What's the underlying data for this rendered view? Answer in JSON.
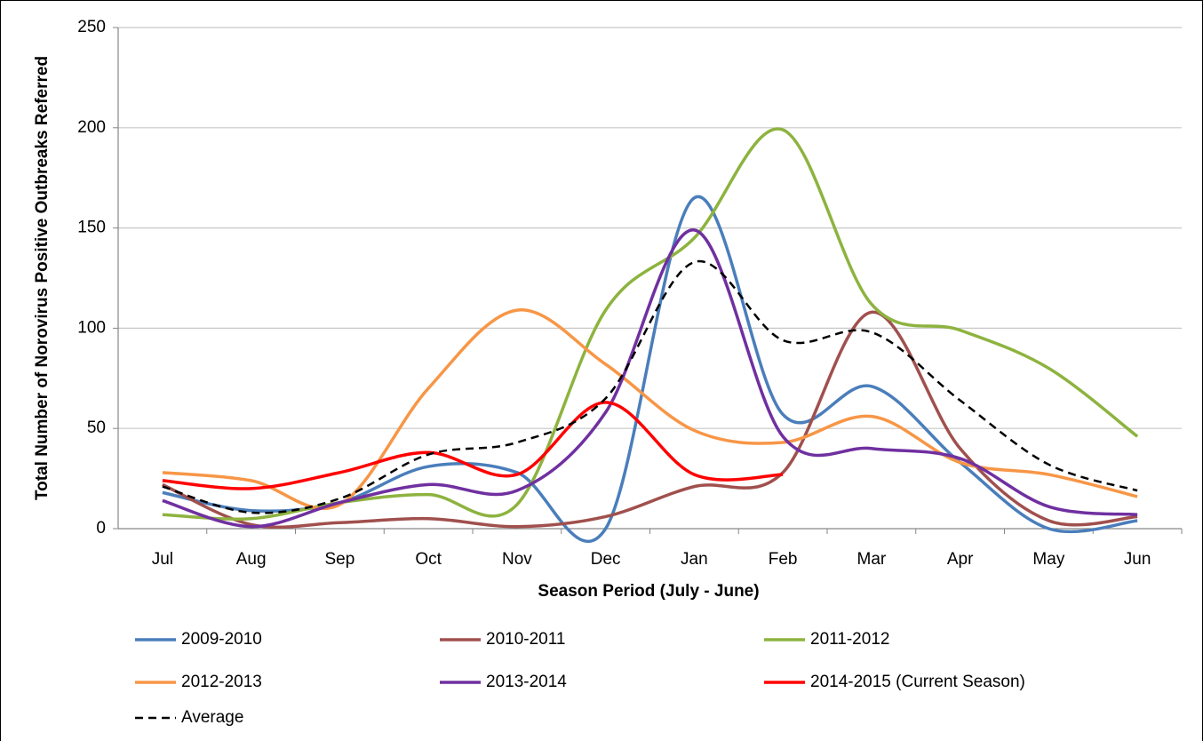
{
  "chart_data": {
    "type": "line",
    "y_label": "Total Number of Norovirus Positive Outbreaks Referred",
    "x_label": "Season Period (July - June)",
    "categories": [
      "Jul",
      "Aug",
      "Sep",
      "Oct",
      "Nov",
      "Dec",
      "Jan",
      "Feb",
      "Mar",
      "Apr",
      "May",
      "Jun"
    ],
    "ylim": [
      0,
      250
    ],
    "yticks": [
      0,
      50,
      100,
      150,
      200,
      250
    ],
    "grid": true,
    "smooth": true,
    "series": [
      {
        "name": "2009-2010",
        "color": "#4a7ebb",
        "values": [
          18,
          9,
          13,
          31,
          28,
          0,
          165,
          57,
          71,
          33,
          0,
          4
        ]
      },
      {
        "name": "2010-2011",
        "color": "#a0504d",
        "values": [
          22,
          2,
          3,
          5,
          1,
          6,
          21,
          28,
          108,
          40,
          4,
          6
        ]
      },
      {
        "name": "2011-2012",
        "color": "#8db33f",
        "values": [
          7,
          5,
          13,
          17,
          12,
          109,
          145,
          199,
          112,
          99,
          80,
          46
        ]
      },
      {
        "name": "2012-2013",
        "color": "#f79646",
        "values": [
          28,
          24,
          12,
          70,
          109,
          82,
          49,
          43,
          56,
          33,
          27,
          16
        ]
      },
      {
        "name": "2013-2014",
        "color": "#7030a0",
        "values": [
          14,
          1,
          13,
          22,
          19,
          58,
          149,
          46,
          40,
          35,
          11,
          7
        ]
      },
      {
        "name": "2014-2015 (Current Season)",
        "color": "#ff0000",
        "values": [
          24,
          20,
          28,
          38,
          27,
          63,
          27,
          27,
          null,
          null,
          null,
          null
        ]
      },
      {
        "name": "Average",
        "color": "#000000",
        "dashed": true,
        "values": [
          21,
          8,
          15,
          37,
          43,
          65,
          133,
          94,
          98,
          64,
          32,
          19
        ]
      }
    ]
  }
}
